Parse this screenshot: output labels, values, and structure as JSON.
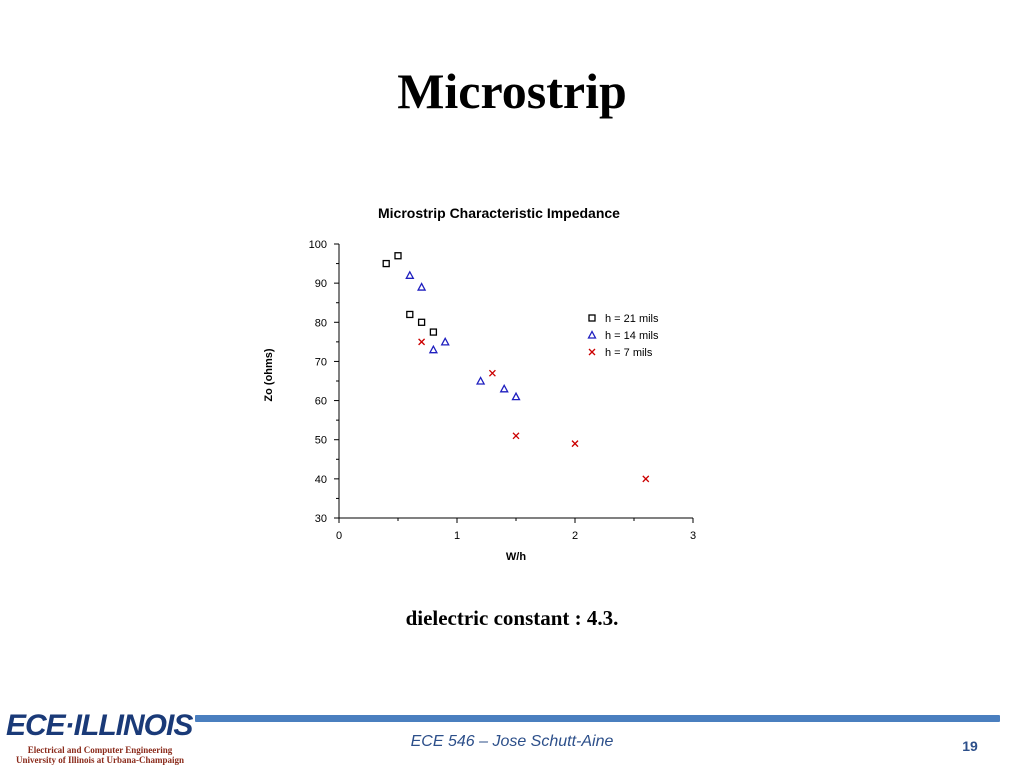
{
  "slide": {
    "title": "Microstrip",
    "subtitle": "dielectric constant : 4.3.",
    "footer": {
      "logo": "ECE·ILLINOIS",
      "logo_line1": "Electrical and Computer Engineering",
      "logo_line2": "University of Illinois at Urbana-Champaign",
      "center": "ECE 546 – Jose Schutt-Aine",
      "page": "19"
    }
  },
  "colors": {
    "accent_bar": "#4a7fbf",
    "square": "#000000",
    "triangle": "#1f1fbf",
    "cross": "#cc0000"
  },
  "chart_data": {
    "type": "scatter",
    "title": "Microstrip Characteristic Impedance",
    "xlabel": "W/h",
    "ylabel": "Zo (ohms)",
    "xlim": [
      0,
      3
    ],
    "ylim": [
      30,
      100
    ],
    "xticks": [
      "0",
      "1",
      "2",
      "3"
    ],
    "yticks": [
      "30",
      "40",
      "50",
      "60",
      "70",
      "80",
      "90",
      "100"
    ],
    "xtick_values": [
      0,
      1,
      2,
      3
    ],
    "ytick_values": [
      30,
      40,
      50,
      60,
      70,
      80,
      90,
      100
    ],
    "grid": false,
    "legend": "right",
    "series": [
      {
        "name": "h = 21 mils",
        "marker": "square",
        "points": [
          [
            0.4,
            95
          ],
          [
            0.5,
            97
          ],
          [
            0.6,
            82
          ],
          [
            0.7,
            80
          ],
          [
            0.8,
            77.5
          ]
        ]
      },
      {
        "name": "h = 14 mils",
        "marker": "triangle",
        "points": [
          [
            0.6,
            92
          ],
          [
            0.7,
            89
          ],
          [
            0.8,
            73
          ],
          [
            0.9,
            75
          ],
          [
            1.2,
            65
          ],
          [
            1.4,
            63
          ],
          [
            1.5,
            61
          ]
        ]
      },
      {
        "name": "h = 7 mils",
        "marker": "cross",
        "points": [
          [
            0.7,
            75
          ],
          [
            1.3,
            67
          ],
          [
            1.5,
            51
          ],
          [
            2.0,
            49
          ],
          [
            2.6,
            40
          ]
        ]
      }
    ]
  }
}
